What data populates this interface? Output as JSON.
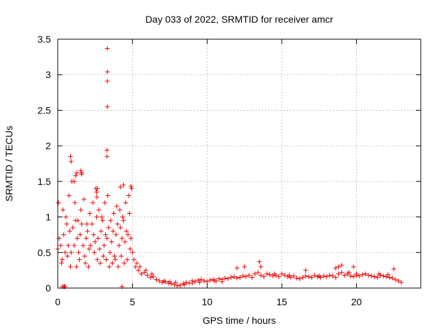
{
  "chart_data": {
    "type": "scatter",
    "title": "Day 033 of 2022, SRMTID for receiver amcr",
    "xlabel": "GPS time / hours",
    "ylabel": "SRMTID / TECUs",
    "xlim": [
      0,
      24.3
    ],
    "ylim": [
      0,
      3.5
    ],
    "xticks": [
      0,
      5,
      10,
      15,
      20
    ],
    "yticks": [
      0,
      0.5,
      1,
      1.5,
      2,
      2.5,
      3,
      3.5
    ],
    "xtick_labels": [
      "0",
      "5",
      "10",
      "15",
      "20"
    ],
    "ytick_labels": [
      "0",
      "0.5",
      "1",
      "1.5",
      "2",
      "2.5",
      "3",
      "3.5"
    ],
    "grid": true,
    "marker": "+",
    "color": "#ee0000",
    "series": [
      {
        "name": "SRMTID",
        "x": [
          0.0,
          0.1,
          0.2,
          0.3,
          0.4,
          0.5,
          0.6,
          0.7,
          0.8,
          0.9,
          1.0,
          1.1,
          1.2,
          1.3,
          1.4,
          1.5,
          1.6,
          1.7,
          1.8,
          1.9,
          2.0,
          2.1,
          2.2,
          2.3,
          2.4,
          2.5,
          2.6,
          2.7,
          2.8,
          2.9,
          3.0,
          3.1,
          3.2,
          3.3,
          3.4,
          3.5,
          3.6,
          3.7,
          3.8,
          3.9,
          4.0,
          4.1,
          4.2,
          4.3,
          4.4,
          4.5,
          4.6,
          4.7,
          4.8,
          4.9,
          5.0,
          5.2,
          5.4,
          5.6,
          5.8,
          6.0,
          6.2,
          6.4,
          6.6,
          6.8,
          7.0,
          7.2,
          7.4,
          7.6,
          7.8,
          8.0,
          8.2,
          8.4,
          8.6,
          8.8,
          9.0,
          9.2,
          9.4,
          9.6,
          9.8,
          10.0,
          10.2,
          10.4,
          10.6,
          10.8,
          11.0,
          11.2,
          11.4,
          11.6,
          11.8,
          12.0,
          12.2,
          12.4,
          12.6,
          12.8,
          13.0,
          13.2,
          13.4,
          13.6,
          13.8,
          14.0,
          14.2,
          14.4,
          14.6,
          14.8,
          15.0,
          15.2,
          15.4,
          15.6,
          15.8,
          16.0,
          16.2,
          16.4,
          16.6,
          16.8,
          17.0,
          17.2,
          17.4,
          17.6,
          17.8,
          18.0,
          18.2,
          18.4,
          18.6,
          18.8,
          19.0,
          19.2,
          19.4,
          19.6,
          19.8,
          20.0,
          20.2,
          20.4,
          20.6,
          20.8,
          21.0,
          21.2,
          21.4,
          21.6,
          21.8,
          22.0,
          22.2,
          22.4,
          22.6,
          22.8,
          0.05,
          0.35,
          0.55,
          0.75,
          0.95,
          1.15,
          1.35,
          1.55,
          1.75,
          1.95,
          2.15,
          2.35,
          2.55,
          2.75,
          2.95,
          3.15,
          3.35,
          3.55,
          3.75,
          3.95,
          4.15,
          4.35,
          4.55,
          4.75,
          4.95,
          0.25,
          0.65,
          0.85,
          1.25,
          1.45,
          1.85,
          2.05,
          2.45,
          2.65,
          2.85,
          3.05,
          3.25,
          3.45,
          3.65,
          3.85,
          4.05,
          4.25,
          4.45,
          4.65,
          4.85,
          3.32,
          3.32,
          3.32,
          3.32,
          3.3,
          3.3,
          0.85,
          0.9,
          1.55,
          1.6,
          1.1,
          1.2,
          1.28,
          1.6,
          4.2,
          4.4,
          4.9,
          2.65,
          2.6,
          2.62,
          0.5,
          0.3,
          0.4,
          4.3,
          0.45,
          13.5,
          13.6,
          12.0,
          12.5,
          18.6,
          18.8,
          19.0,
          16.6,
          19.8,
          20.0,
          22.5,
          8.5,
          9.0,
          9.5,
          11.0,
          10.5,
          5.1,
          5.3,
          5.5,
          5.9,
          6.3,
          7.1,
          7.5,
          7.9,
          14.5,
          15.5,
          17.5,
          19.5,
          21.5,
          22.1,
          23.0
        ],
        "y": [
          0.55,
          0.7,
          0.6,
          0.4,
          0.75,
          0.5,
          0.9,
          0.6,
          0.8,
          0.5,
          0.85,
          0.6,
          0.95,
          0.7,
          0.5,
          0.75,
          0.9,
          0.6,
          0.45,
          0.7,
          0.8,
          0.55,
          0.6,
          0.9,
          0.75,
          0.65,
          1.0,
          0.7,
          0.55,
          0.8,
          0.95,
          0.6,
          0.75,
          0.7,
          0.85,
          0.5,
          0.65,
          0.8,
          0.45,
          0.75,
          0.9,
          0.6,
          0.85,
          0.7,
          0.95,
          0.65,
          0.8,
          0.75,
          1.05,
          0.7,
          0.5,
          0.3,
          0.25,
          0.2,
          0.22,
          0.18,
          0.15,
          0.16,
          0.12,
          0.1,
          0.08,
          0.09,
          0.07,
          0.06,
          0.05,
          0.03,
          0.04,
          0.06,
          0.08,
          0.07,
          0.1,
          0.09,
          0.11,
          0.12,
          0.1,
          0.09,
          0.11,
          0.12,
          0.1,
          0.13,
          0.12,
          0.14,
          0.13,
          0.15,
          0.16,
          0.14,
          0.15,
          0.17,
          0.16,
          0.18,
          0.15,
          0.2,
          0.22,
          0.18,
          0.16,
          0.2,
          0.19,
          0.17,
          0.18,
          0.16,
          0.2,
          0.18,
          0.16,
          0.15,
          0.17,
          0.14,
          0.13,
          0.15,
          0.17,
          0.16,
          0.15,
          0.18,
          0.16,
          0.15,
          0.17,
          0.16,
          0.18,
          0.17,
          0.15,
          0.2,
          0.22,
          0.18,
          0.2,
          0.17,
          0.16,
          0.18,
          0.17,
          0.19,
          0.2,
          0.18,
          0.17,
          0.16,
          0.15,
          0.18,
          0.17,
          0.16,
          0.15,
          0.14,
          0.12,
          0.1,
          1.2,
          1.1,
          1.0,
          1.3,
          1.5,
          1.2,
          0.95,
          1.1,
          1.25,
          0.9,
          1.05,
          1.2,
          1.4,
          1.1,
          1.0,
          1.2,
          1.3,
          0.95,
          1.05,
          1.15,
          1.1,
          1.0,
          1.2,
          1.3,
          1.4,
          0.35,
          0.45,
          0.3,
          0.3,
          0.4,
          0.35,
          0.3,
          0.5,
          0.4,
          0.35,
          0.45,
          0.4,
          0.3,
          0.35,
          0.4,
          0.3,
          0.45,
          0.35,
          0.4,
          0.55,
          3.37,
          3.04,
          2.91,
          2.55,
          1.94,
          1.85,
          1.85,
          1.78,
          1.65,
          1.62,
          1.5,
          1.58,
          1.62,
          1.6,
          1.42,
          1.45,
          1.43,
          1.4,
          1.35,
          1.28,
          0.02,
          0.02,
          0.02,
          0.02,
          0.02,
          0.37,
          0.3,
          0.28,
          0.3,
          0.28,
          0.3,
          0.32,
          0.25,
          0.3,
          0.2,
          0.27,
          0.05,
          0.07,
          0.08,
          0.09,
          0.1,
          0.4,
          0.35,
          0.3,
          0.25,
          0.2,
          0.1,
          0.09,
          0.08,
          0.2,
          0.18,
          0.17,
          0.22,
          0.2,
          0.19,
          0.08
        ]
      }
    ]
  }
}
